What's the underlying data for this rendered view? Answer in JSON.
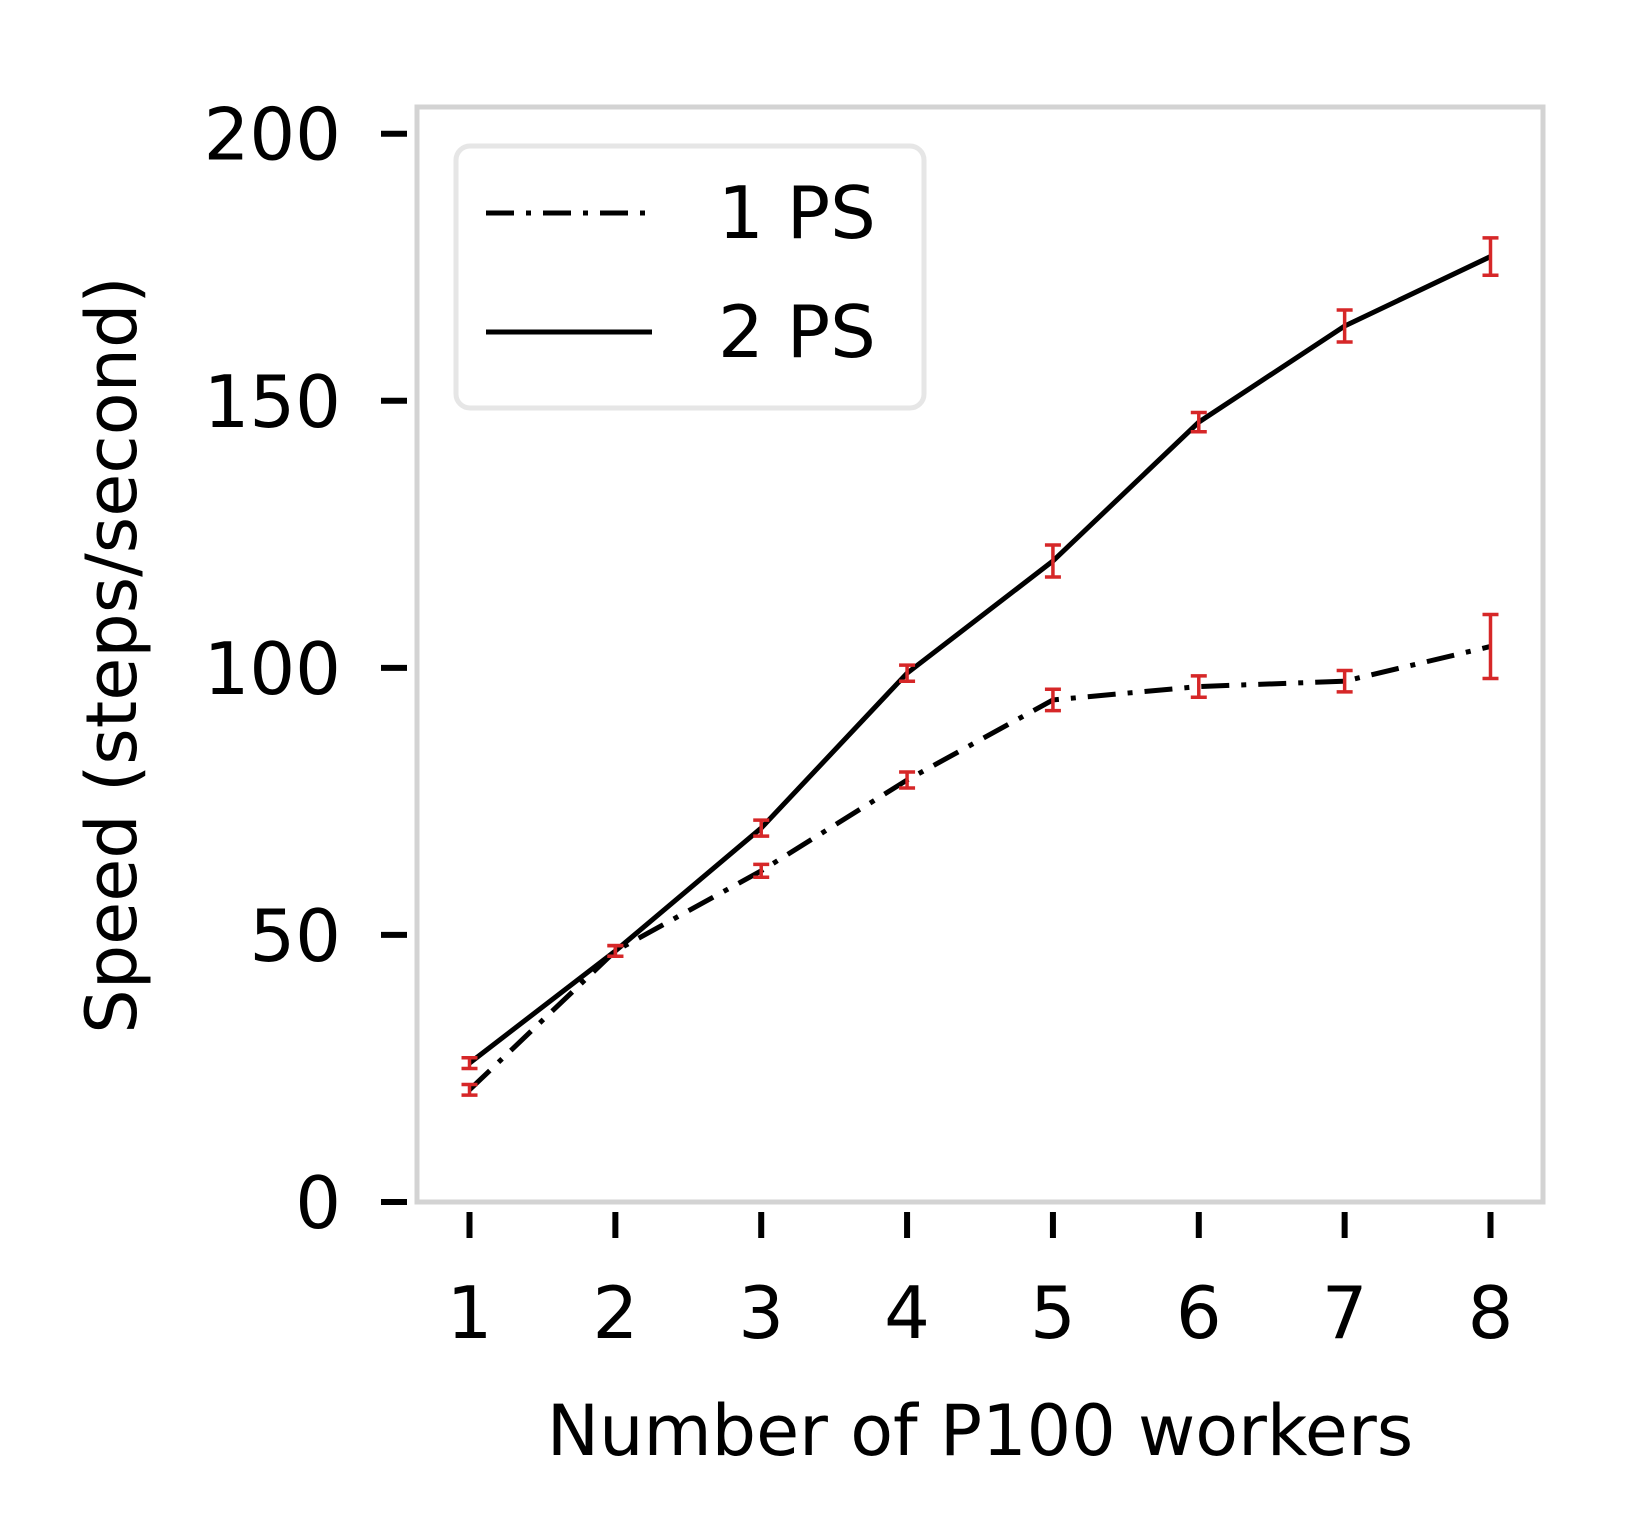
{
  "chart_data": {
    "type": "line",
    "title": "",
    "xlabel": "Number of P100 workers",
    "ylabel": "Speed (steps/second)",
    "x": [
      1,
      2,
      3,
      4,
      5,
      6,
      7,
      8
    ],
    "xlim": [
      0.64,
      8.36
    ],
    "ylim": [
      0,
      205
    ],
    "xticks": [
      1,
      2,
      3,
      4,
      5,
      6,
      7,
      8
    ],
    "yticks": [
      0,
      50,
      100,
      150,
      200
    ],
    "grid": false,
    "legend_position": "upper-left",
    "errorbar_color": "#d62728",
    "series": [
      {
        "name": "1 PS",
        "linestyle": "dash-dot",
        "color": "#000000",
        "values": [
          21,
          47,
          62,
          79,
          94,
          96.5,
          97.5,
          104
        ],
        "errors": [
          1,
          1,
          1.2,
          1.5,
          2,
          2,
          2,
          6
        ]
      },
      {
        "name": "2 PS",
        "linestyle": "solid",
        "color": "#000000",
        "values": [
          26,
          47,
          70,
          99,
          120,
          146,
          164,
          177
        ],
        "errors": [
          1,
          1,
          1.5,
          1.5,
          3,
          1.8,
          3,
          3.5
        ]
      }
    ]
  }
}
